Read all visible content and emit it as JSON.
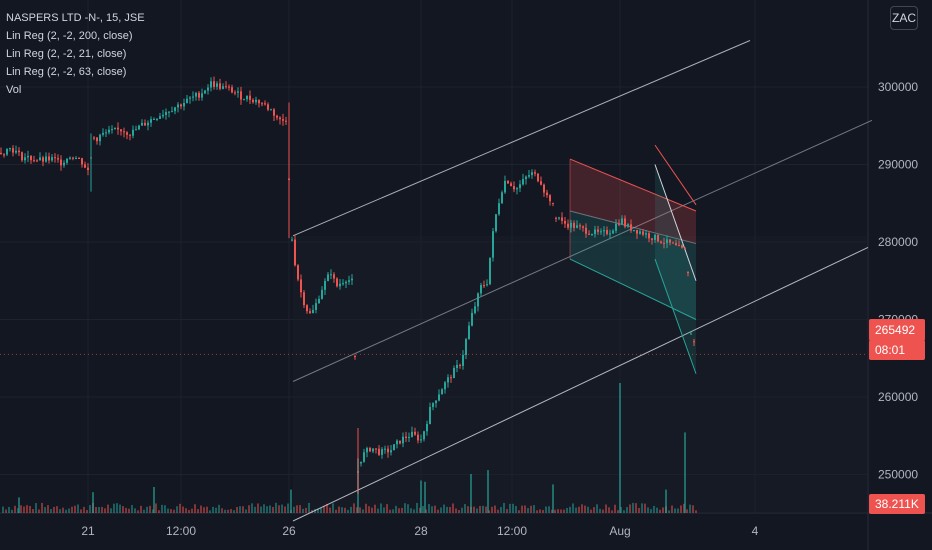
{
  "legend": {
    "symbol": "NASPERS LTD -N-, 15, JSE",
    "ind1": "Lin Reg (2, -2, 200, close)",
    "ind2": "Lin Reg (2, -2, 21, close)",
    "ind3": "Lin Reg (2, -2, 63, close)",
    "ind4": "Vol"
  },
  "currency_button": "ZAC",
  "current_price": "265492",
  "countdown": "08:01",
  "volume_label": "38.211K",
  "colors": {
    "up": "#26a69a",
    "down": "#ef5350",
    "bg": "#131722",
    "grid": "#1e222d",
    "channel": "#b2b5be"
  },
  "chart_data": {
    "type": "candlestick",
    "title": "NASPERS LTD -N-, 15, JSE",
    "ylim": [
      244000,
      306000
    ],
    "yticks": [
      250000,
      260000,
      270000,
      280000,
      290000,
      300000
    ],
    "xticks": [
      "21",
      "12:00",
      "26",
      "28",
      "12:00",
      "Aug",
      "4"
    ],
    "close_path": [
      [
        0,
        291500
      ],
      [
        10,
        292200
      ],
      [
        20,
        291000
      ],
      [
        30,
        290800
      ],
      [
        40,
        290500
      ],
      [
        50,
        290700
      ],
      [
        60,
        290300
      ],
      [
        70,
        291200
      ],
      [
        80,
        290500
      ],
      [
        88,
        289000
      ],
      [
        92,
        293000
      ],
      [
        100,
        293800
      ],
      [
        110,
        294200
      ],
      [
        120,
        294500
      ],
      [
        130,
        294000
      ],
      [
        140,
        295000
      ],
      [
        150,
        295800
      ],
      [
        160,
        296500
      ],
      [
        170,
        297200
      ],
      [
        180,
        297800
      ],
      [
        190,
        298500
      ],
      [
        200,
        299200
      ],
      [
        210,
        300500
      ],
      [
        220,
        300000
      ],
      [
        230,
        299600
      ],
      [
        240,
        298800
      ],
      [
        250,
        298500
      ],
      [
        260,
        298000
      ],
      [
        270,
        297000
      ],
      [
        280,
        295500
      ],
      [
        286,
        296000
      ],
      [
        290,
        280800
      ],
      [
        295,
        276500
      ],
      [
        300,
        273500
      ],
      [
        305,
        271500
      ],
      [
        310,
        270500
      ],
      [
        315,
        272000
      ],
      [
        320,
        273800
      ],
      [
        325,
        275000
      ],
      [
        330,
        276200
      ],
      [
        335,
        274200
      ],
      [
        340,
        274800
      ],
      [
        345,
        275300
      ],
      [
        352,
        274800
      ],
      [
        357,
        250000
      ],
      [
        362,
        252500
      ],
      [
        370,
        253500
      ],
      [
        380,
        252800
      ],
      [
        390,
        253200
      ],
      [
        400,
        254500
      ],
      [
        410,
        255200
      ],
      [
        420,
        254500
      ],
      [
        425,
        256500
      ],
      [
        430,
        258800
      ],
      [
        440,
        261000
      ],
      [
        450,
        262800
      ],
      [
        460,
        264500
      ],
      [
        470,
        270200
      ],
      [
        480,
        274200
      ],
      [
        487,
        275000
      ],
      [
        490,
        279500
      ],
      [
        495,
        283500
      ],
      [
        500,
        286500
      ],
      [
        505,
        288200
      ],
      [
        510,
        287500
      ],
      [
        515,
        286800
      ],
      [
        520,
        287500
      ],
      [
        525,
        288300
      ],
      [
        530,
        288900
      ],
      [
        535,
        288500
      ],
      [
        540,
        287800
      ],
      [
        545,
        286000
      ],
      [
        550,
        285500
      ],
      [
        555,
        283200
      ],
      [
        560,
        282500
      ],
      [
        570,
        282200
      ],
      [
        580,
        281700
      ],
      [
        590,
        281300
      ],
      [
        600,
        281000
      ],
      [
        610,
        281500
      ],
      [
        620,
        283000
      ],
      [
        625,
        282000
      ],
      [
        630,
        281800
      ],
      [
        640,
        281300
      ],
      [
        650,
        280700
      ],
      [
        660,
        280200
      ],
      [
        670,
        279700
      ],
      [
        680,
        279000
      ],
      [
        686,
        278800
      ],
      [
        690,
        268500
      ],
      [
        695,
        265500
      ]
    ],
    "volume_spikes": [
      {
        "x": 619,
        "v": 1.0
      },
      {
        "x": 684,
        "v": 0.62
      },
      {
        "x": 357,
        "v": 0.42
      },
      {
        "x": 487,
        "v": 0.33
      },
      {
        "x": 470,
        "v": 0.3
      },
      {
        "x": 290,
        "v": 0.18
      },
      {
        "x": 552,
        "v": 0.22
      },
      {
        "x": 420,
        "v": 0.25
      },
      {
        "x": 424,
        "v": 0.24
      },
      {
        "x": 153,
        "v": 0.2
      },
      {
        "x": 92,
        "v": 0.16
      },
      {
        "x": 18,
        "v": 0.12
      },
      {
        "x": 665,
        "v": 0.18
      }
    ],
    "long_channel": {
      "x1": 293,
      "x2": 932,
      "mid": [
        296500,
        262000,
        295700
      ],
      "upper": [
        280800,
        306000
      ],
      "lower": [
        244000,
        279300
      ]
    },
    "red_channel": {
      "x1": 570,
      "x2": 696,
      "upper": [
        290700,
        284000
      ],
      "mid": [
        284000,
        279800
      ],
      "lower": [
        277800,
        270000
      ]
    },
    "teal_channel": {
      "x1": 655,
      "x2": 696,
      "upper": [
        290000,
        275000
      ],
      "lower": [
        277800,
        263000
      ]
    }
  }
}
